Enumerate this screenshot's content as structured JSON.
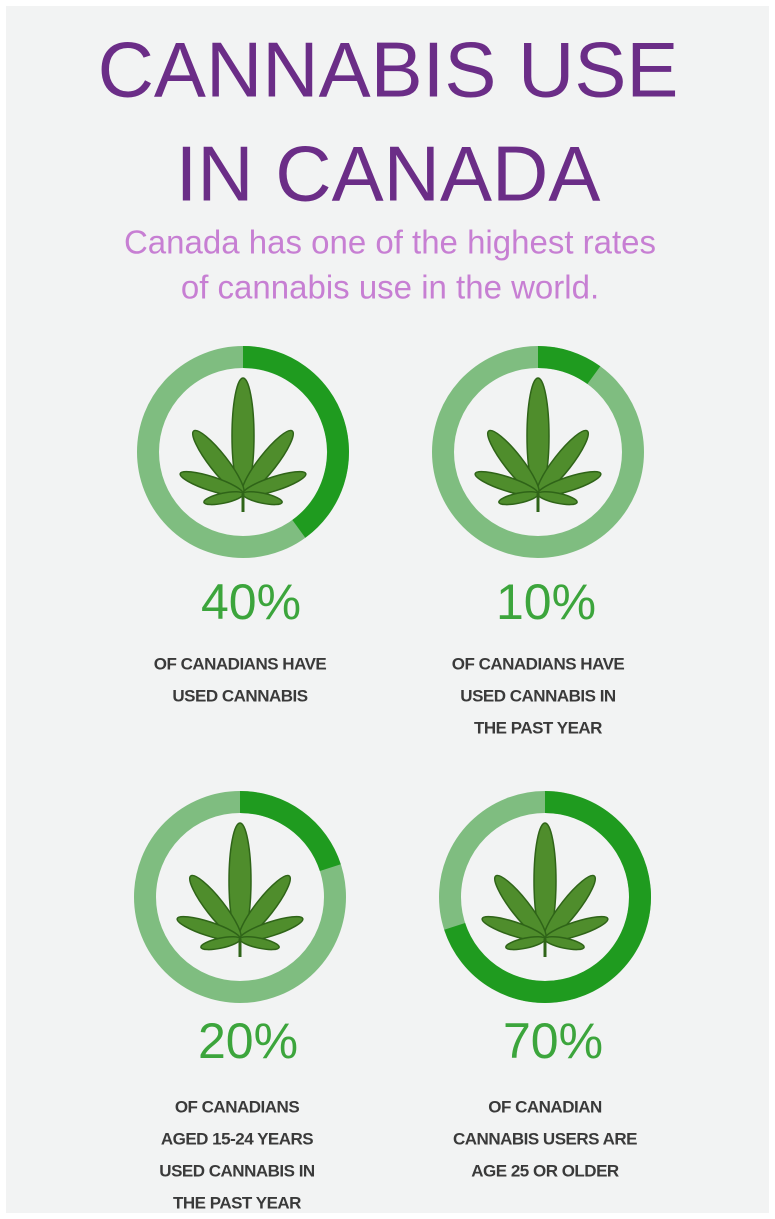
{
  "header": {
    "title": [
      "CANNABIS USE",
      "IN CANADA"
    ],
    "subtitle": [
      "Canada has one of the highest rates",
      "of cannabis use in the world."
    ]
  },
  "chart_data": {
    "type": "donut",
    "stats": [
      {
        "value": 40,
        "value_label": "40%",
        "caption": [
          "OF CANADIANS HAVE",
          "USED CANNABIS"
        ]
      },
      {
        "value": 10,
        "value_label": "10%",
        "caption": [
          "OF CANADIANS HAVE",
          "USED CANNABIS IN",
          "THE PAST YEAR"
        ]
      },
      {
        "value": 20,
        "value_label": "20%",
        "caption": [
          "OF CANADIANS",
          "AGED 15-24 YEARS",
          "USED CANNABIS IN",
          "THE PAST YEAR"
        ]
      },
      {
        "value": 70,
        "value_label": "70%",
        "caption": [
          "OF CANADIAN",
          "CANNABIS USERS ARE",
          "AGE 25 OR OLDER"
        ]
      }
    ],
    "track_color": "#7fbd80",
    "color": "#1f9b1f"
  }
}
